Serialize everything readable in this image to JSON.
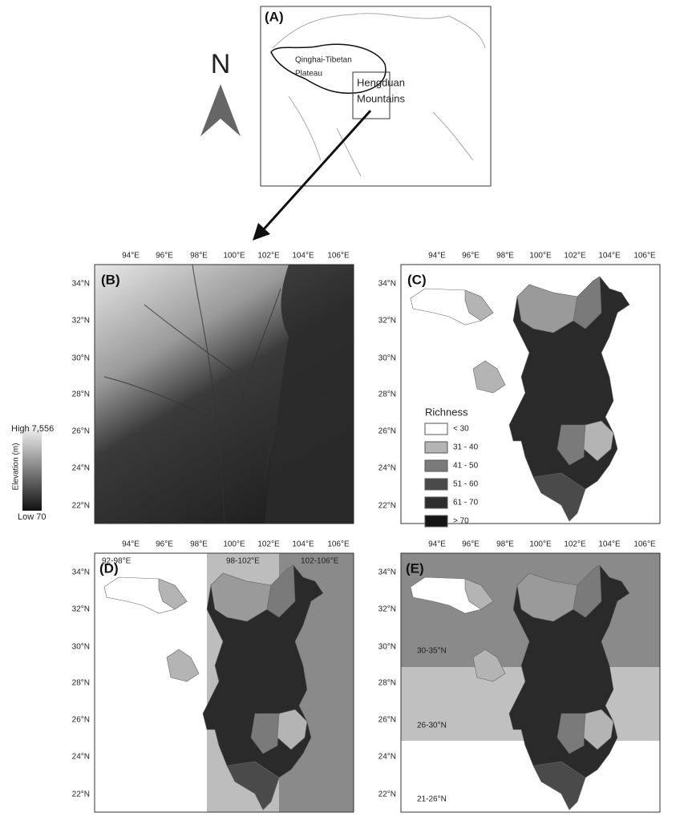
{
  "north_label": "N",
  "longitude_labels": [
    "94°E",
    "96°E",
    "98°E",
    "100°E",
    "102°E",
    "104°E",
    "106°E"
  ],
  "latitude_labels": [
    "34°N",
    "32°N",
    "30°N",
    "28°N",
    "26°N",
    "24°N",
    "22°N"
  ],
  "panel_a": {
    "label": "(A)",
    "plateau_label": [
      "Qinghai-Tibetan",
      "Plateau"
    ],
    "region_label": [
      "Hengduan",
      "Mountains"
    ]
  },
  "panel_b": {
    "label": "(B)"
  },
  "elevation_legend": {
    "title": "Elevation (m)",
    "high": "High 7,556",
    "low": "Low 70"
  },
  "panel_c": {
    "label": "(C)",
    "legend": {
      "title": "Richness",
      "items": [
        {
          "label": "< 30",
          "color": "#ffffff"
        },
        {
          "label": "31 - 40",
          "color": "#b4b4b4"
        },
        {
          "label": "41 - 50",
          "color": "#7a7a7a"
        },
        {
          "label": "51 - 60",
          "color": "#4a4a4a"
        },
        {
          "label": "61 - 70",
          "color": "#2e2e2e"
        },
        {
          "label": "> 70",
          "color": "#151515"
        }
      ]
    }
  },
  "panel_d": {
    "label": "(D)",
    "bands": [
      {
        "label": "92-98°E",
        "color": "#ffffff"
      },
      {
        "label": "98-102°E",
        "color": "#bdbdbd"
      },
      {
        "label": "102-106°E",
        "color": "#8a8a8a"
      }
    ]
  },
  "panel_e": {
    "label": "(E)",
    "bands": [
      {
        "label": "30-35°N",
        "color": "#8a8a8a"
      },
      {
        "label": "26-30°N",
        "color": "#c0c0c0"
      },
      {
        "label": "21-26°N",
        "color": "#ffffff"
      }
    ]
  }
}
